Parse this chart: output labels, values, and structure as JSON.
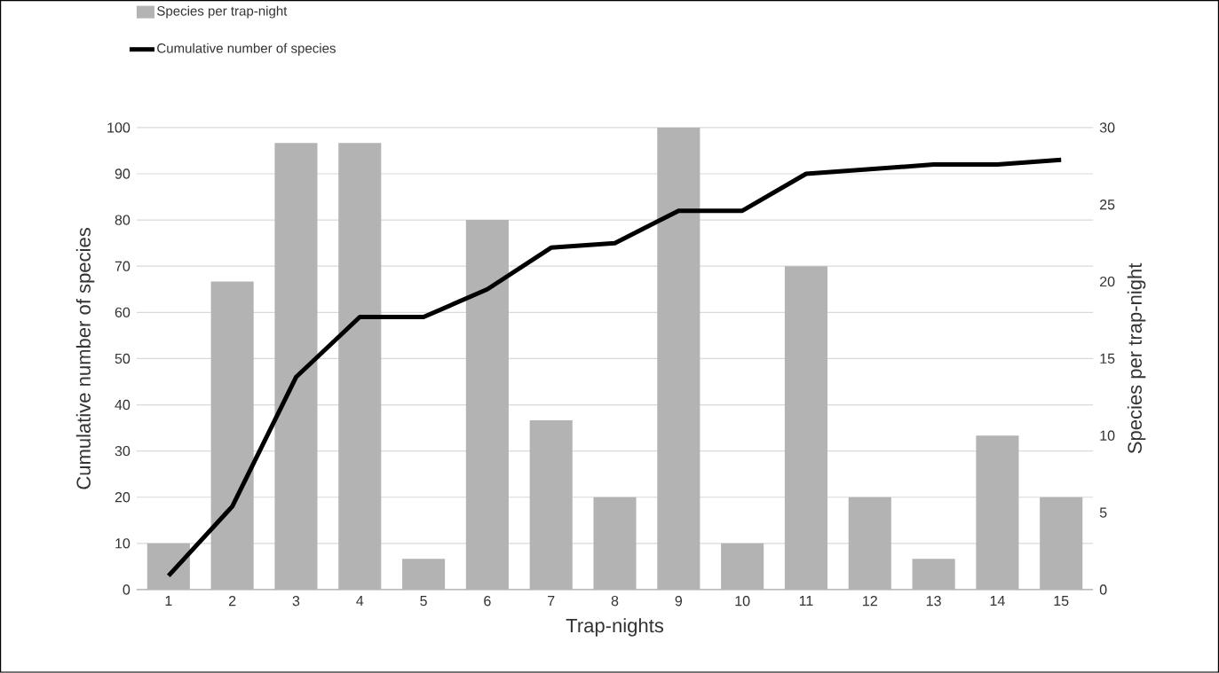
{
  "chart_data": {
    "type": "bar",
    "xlabel": "Trap-nights",
    "ylabel": "Cumulative number of species",
    "y2label": "Species per trap-night",
    "categories": [
      "1",
      "2",
      "3",
      "4",
      "5",
      "6",
      "7",
      "8",
      "9",
      "10",
      "11",
      "12",
      "13",
      "14",
      "15"
    ],
    "series": [
      {
        "name": "Species per trap-night",
        "axis": "y2",
        "color": "#b3b3b3",
        "values": [
          3,
          20,
          29,
          29,
          2,
          24,
          11,
          6,
          30,
          3,
          21,
          6,
          2,
          10,
          6
        ]
      },
      {
        "name": "Cumulative number of species",
        "type": "line",
        "color": "#000000",
        "values": [
          3,
          18,
          46,
          59,
          59,
          65,
          74,
          75,
          82,
          82,
          90,
          91,
          92,
          92,
          93
        ]
      }
    ],
    "ylim": [
      0,
      100
    ],
    "yticks": [
      0,
      10,
      20,
      30,
      40,
      50,
      60,
      70,
      80,
      90,
      100
    ],
    "y2lim": [
      0,
      30
    ],
    "y2ticks": [
      0,
      5,
      10,
      15,
      20,
      25,
      30
    ],
    "grid": "y",
    "legend": "top left"
  }
}
